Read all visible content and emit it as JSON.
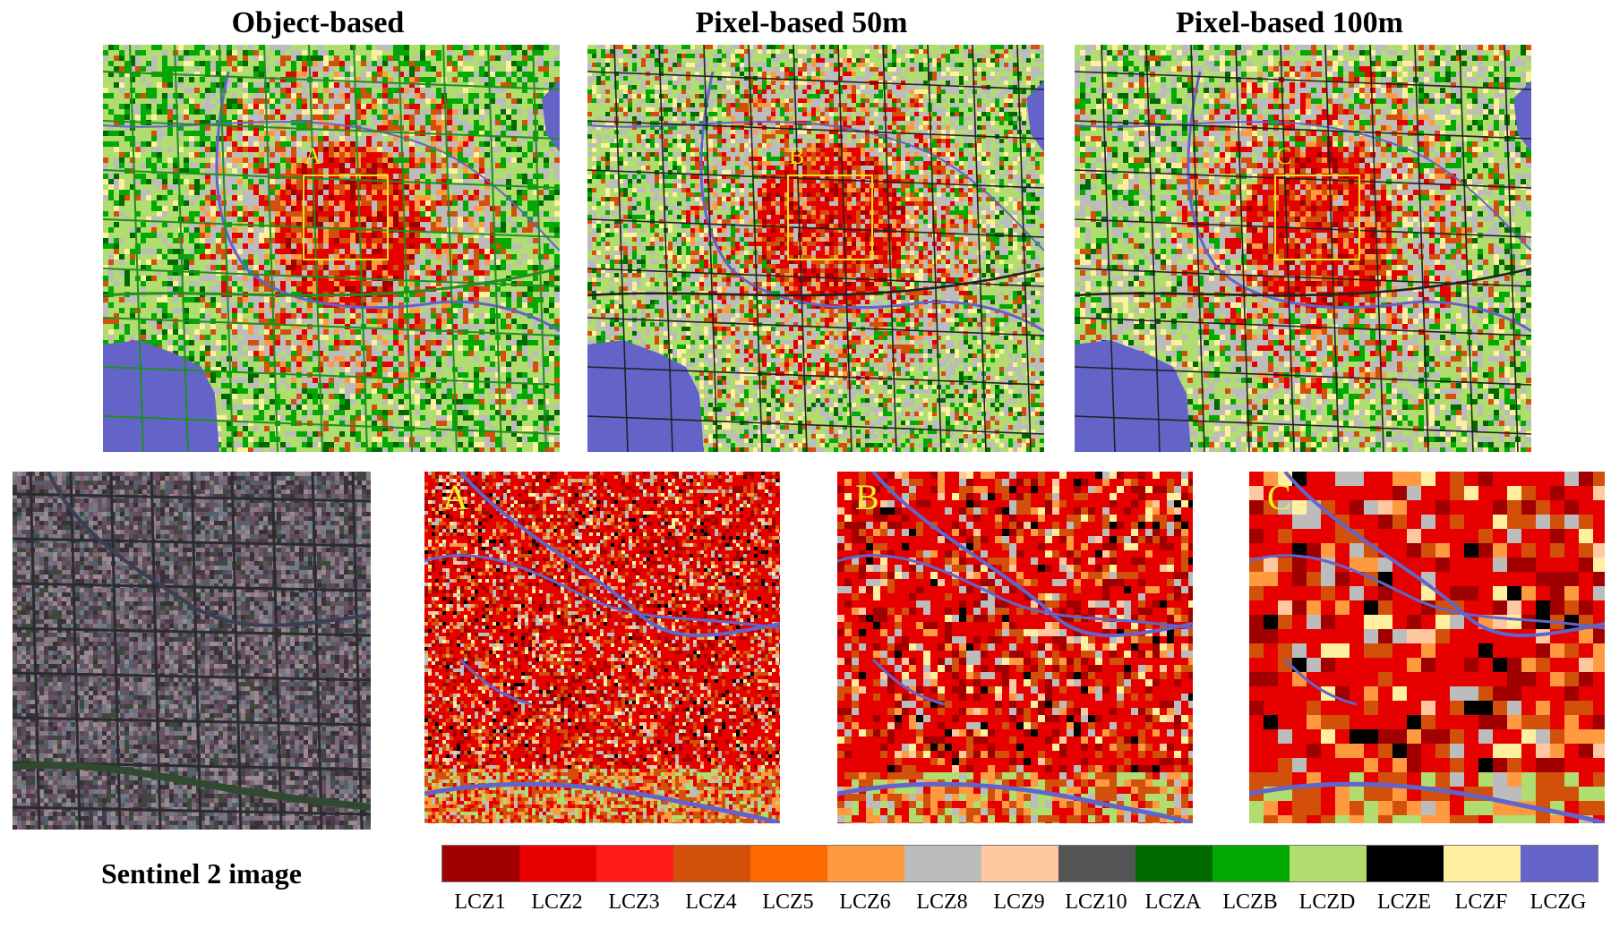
{
  "titles": {
    "object_based": "Object-based",
    "pixel_50m": "Pixel-based 50m",
    "pixel_100m": "Pixel-based 100m"
  },
  "zoom_labels": {
    "a": "A",
    "b": "B",
    "c": "C"
  },
  "sentinel_caption": "Sentinel 2 image",
  "legend": [
    {
      "label": "LCZ1",
      "color": "#a00000"
    },
    {
      "label": "LCZ2",
      "color": "#e60000"
    },
    {
      "label": "LCZ3",
      "color": "#ff1a1a"
    },
    {
      "label": "LCZ4",
      "color": "#d2500a"
    },
    {
      "label": "LCZ5",
      "color": "#ff6a00"
    },
    {
      "label": "LCZ6",
      "color": "#ff9a40"
    },
    {
      "label": "LCZ8",
      "color": "#bcbcbc"
    },
    {
      "label": "LCZ9",
      "color": "#ffc8a0"
    },
    {
      "label": "LCZ10",
      "color": "#555555"
    },
    {
      "label": "LCZA",
      "color": "#006a00"
    },
    {
      "label": "LCZB",
      "color": "#00aa00"
    },
    {
      "label": "LCZD",
      "color": "#b0dc70"
    },
    {
      "label": "LCZE",
      "color": "#000000"
    },
    {
      "label": "LCZF",
      "color": "#fff0a0"
    },
    {
      "label": "LCZG",
      "color": "#6464c8"
    }
  ]
}
